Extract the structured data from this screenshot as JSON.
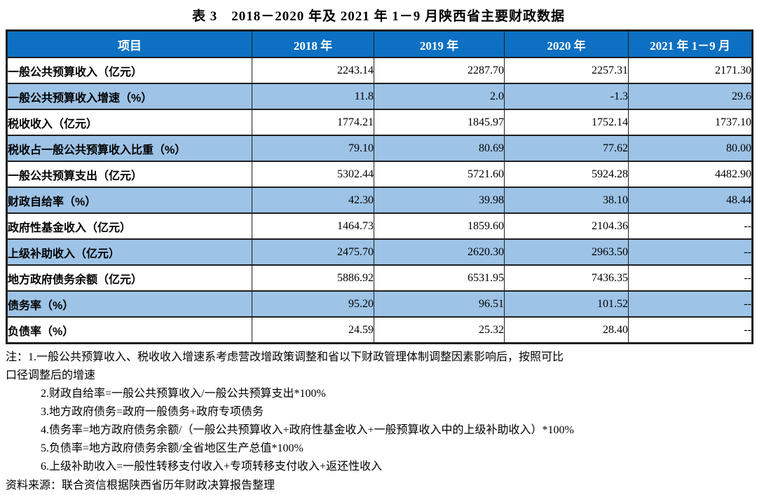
{
  "title": "表 3　2018－2020 年及 2021 年 1－9 月陕西省主要财政数据",
  "table": {
    "columns": [
      "项目",
      "2018 年",
      "2019 年",
      "2020 年",
      "2021 年 1－9 月"
    ],
    "rows": [
      {
        "label": "一般公共预算收入（亿元）",
        "values": [
          "2243.14",
          "2287.70",
          "2257.31",
          "2171.30"
        ],
        "shaded": false
      },
      {
        "label": "一般公共预算收入增速（%）",
        "values": [
          "11.8",
          "2.0",
          "-1.3",
          "29.6"
        ],
        "shaded": true
      },
      {
        "label": "税收收入（亿元）",
        "values": [
          "1774.21",
          "1845.97",
          "1752.14",
          "1737.10"
        ],
        "shaded": false
      },
      {
        "label": "税收占一般公共预算收入比重（%）",
        "values": [
          "79.10",
          "80.69",
          "77.62",
          "80.00"
        ],
        "shaded": true
      },
      {
        "label": "一般公共预算支出（亿元）",
        "values": [
          "5302.44",
          "5721.60",
          "5924.28",
          "4482.90"
        ],
        "shaded": false
      },
      {
        "label": "财政自给率（%）",
        "values": [
          "42.30",
          "39.98",
          "38.10",
          "48.44"
        ],
        "shaded": true
      },
      {
        "label": "政府性基金收入（亿元）",
        "values": [
          "1464.73",
          "1859.60",
          "2104.36",
          "--"
        ],
        "shaded": false
      },
      {
        "label": "上级补助收入（亿元）",
        "values": [
          "2475.70",
          "2620.30",
          "2963.50",
          "--"
        ],
        "shaded": true
      },
      {
        "label": "地方政府债务余额（亿元）",
        "values": [
          "5886.92",
          "6531.95",
          "7436.35",
          "--"
        ],
        "shaded": false
      },
      {
        "label": "债务率（%）",
        "values": [
          "95.20",
          "96.51",
          "101.52",
          "--"
        ],
        "shaded": true
      },
      {
        "label": "负债率（%）",
        "values": [
          "24.59",
          "25.32",
          "28.40",
          "--"
        ],
        "shaded": false
      }
    ]
  },
  "notes": [
    {
      "text": "注：1.一般公共预算收入、税收收入增速系考虑营改增政策调整和省以下财政管理体制调整因素影响后，按照可比",
      "indent": false
    },
    {
      "text": "口径调整后的增速",
      "indent": false
    },
    {
      "text": "2.财政自给率=一般公共预算收入/一般公共预算支出*100%",
      "indent": true
    },
    {
      "text": "3.地方政府债务=政府一般债务+政府专项债务",
      "indent": true
    },
    {
      "text": "4.债务率=地方政府债务余额/（一般公共预算收入+政府性基金收入+一般预算收入中的上级补助收入）*100%",
      "indent": true
    },
    {
      "text": "5.负债率=地方政府债务余额/全省地区生产总值*100%",
      "indent": true
    },
    {
      "text": "6.上级补助收入=一般性转移支付收入+专项转移支付收入+返还性收入",
      "indent": true
    }
  ],
  "source": "资料来源：联合资信根据陕西省历年财政决算报告整理",
  "colors": {
    "header_bg": "#0d70c2",
    "header_text": "#ffffff",
    "shaded_row_bg": "#9dc3e6",
    "border": "#1f1f1f"
  }
}
